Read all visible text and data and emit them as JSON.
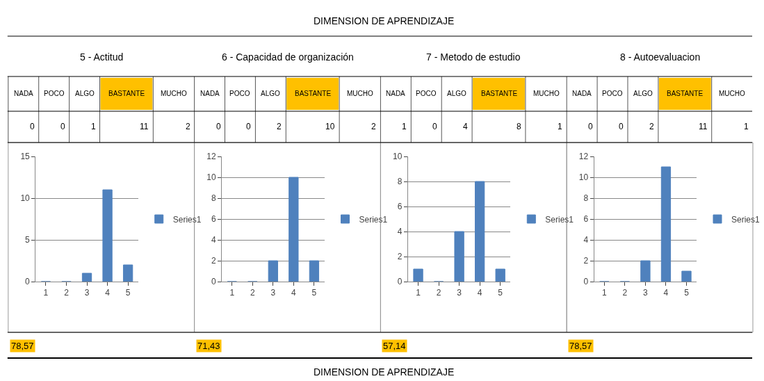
{
  "chart_data": [
    {
      "type": "bar",
      "title": "5 - Actitud",
      "categories": [
        "1",
        "2",
        "3",
        "4",
        "5"
      ],
      "series": [
        {
          "name": "Series1",
          "color": "#4f81bd",
          "values": [
            0,
            0,
            1,
            11,
            2
          ]
        }
      ],
      "ylim": [
        0,
        15
      ],
      "yticks": [
        0,
        5,
        10,
        15
      ],
      "grid": "y",
      "legend": "right",
      "annotations": [
        "NADA",
        "POCO",
        "ALGO",
        "BASTANTE",
        "MUCHO",
        "0",
        "0",
        "1",
        "11",
        "2",
        "78,57",
        "DIMENSION DE APRENDIZAJE",
        "DIMENSION DE APRENDIZAJE"
      ]
    },
    {
      "type": "bar",
      "title": "6 - Capacidad de organización",
      "categories": [
        "1",
        "2",
        "3",
        "4",
        "5"
      ],
      "series": [
        {
          "name": "Series1",
          "color": "#4f81bd",
          "values": [
            0,
            0,
            2,
            10,
            2
          ]
        }
      ],
      "ylim": [
        0,
        12
      ],
      "yticks": [
        0,
        2,
        4,
        6,
        8,
        10,
        12
      ],
      "grid": "y",
      "legend": "right",
      "annotations": [
        "NADA",
        "POCO",
        "ALGO",
        "BASTANTE",
        "MUCHO",
        "0",
        "0",
        "2",
        "10",
        "2",
        "71,43"
      ]
    },
    {
      "type": "bar",
      "title": "7 - Metodo de estudio",
      "categories": [
        "1",
        "2",
        "3",
        "4",
        "5"
      ],
      "series": [
        {
          "name": "Series1",
          "color": "#4f81bd",
          "values": [
            1,
            0,
            4,
            8,
            1
          ]
        }
      ],
      "ylim": [
        0,
        10
      ],
      "yticks": [
        0,
        2,
        4,
        6,
        8,
        10
      ],
      "grid": "y",
      "legend": "right",
      "annotations": [
        "NADA",
        "POCO",
        "ALGO",
        "BASTANTE",
        "MUCHO",
        "1",
        "0",
        "4",
        "8",
        "1",
        "57,14"
      ]
    },
    {
      "type": "bar",
      "title": "8 - Autoevaluacion",
      "categories": [
        "1",
        "2",
        "3",
        "4",
        "5"
      ],
      "series": [
        {
          "name": "Series1",
          "color": "#4f81bd",
          "values": [
            0,
            0,
            2,
            11,
            1
          ]
        }
      ],
      "ylim": [
        0,
        12
      ],
      "yticks": [
        0,
        2,
        4,
        6,
        8,
        10,
        12
      ],
      "grid": "y",
      "legend": "right",
      "annotations": [
        "NADA",
        "POCO",
        "ALGO",
        "BASTANTE",
        "MUCHO",
        "0",
        "0",
        "2",
        "11",
        "1",
        "78,57"
      ]
    }
  ]
}
